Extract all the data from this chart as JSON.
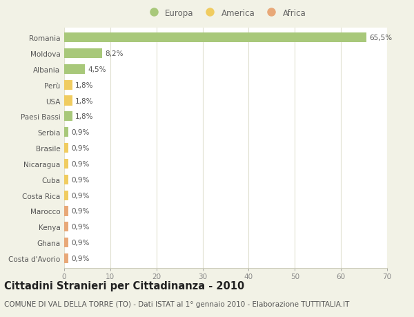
{
  "categories": [
    "Romania",
    "Moldova",
    "Albania",
    "Perù",
    "USA",
    "Paesi Bassi",
    "Serbia",
    "Brasile",
    "Nicaragua",
    "Cuba",
    "Costa Rica",
    "Marocco",
    "Kenya",
    "Ghana",
    "Costa d'Avorio"
  ],
  "values": [
    65.5,
    8.2,
    4.5,
    1.8,
    1.8,
    1.8,
    0.9,
    0.9,
    0.9,
    0.9,
    0.9,
    0.9,
    0.9,
    0.9,
    0.9
  ],
  "continents": [
    "Europa",
    "Europa",
    "Europa",
    "America",
    "America",
    "Europa",
    "Europa",
    "America",
    "America",
    "America",
    "America",
    "Africa",
    "Africa",
    "Africa",
    "Africa"
  ],
  "labels": [
    "65,5%",
    "8,2%",
    "4,5%",
    "1,8%",
    "1,8%",
    "1,8%",
    "0,9%",
    "0,9%",
    "0,9%",
    "0,9%",
    "0,9%",
    "0,9%",
    "0,9%",
    "0,9%",
    "0,9%"
  ],
  "colors": {
    "Europa": "#a8c87a",
    "America": "#f0cc60",
    "Africa": "#e8a878"
  },
  "background_color": "#f2f2e6",
  "plot_background": "#ffffff",
  "grid_color": "#e0e0d0",
  "xlim": [
    0,
    70
  ],
  "xticks": [
    0,
    10,
    20,
    30,
    40,
    50,
    60,
    70
  ],
  "title": "Cittadini Stranieri per Cittadinanza - 2010",
  "subtitle": "COMUNE DI VAL DELLA TORRE (TO) - Dati ISTAT al 1° gennaio 2010 - Elaborazione TUTTITALIA.IT",
  "title_fontsize": 10.5,
  "subtitle_fontsize": 7.5,
  "bar_height": 0.62
}
